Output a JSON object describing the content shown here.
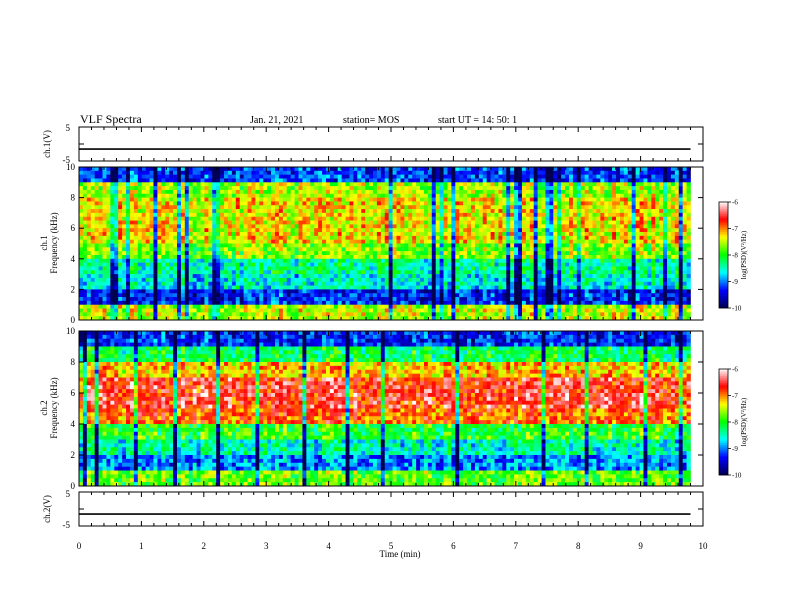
{
  "header": {
    "title": "VLF Spectra",
    "date": "Jan. 21, 2021",
    "station": "station= MOS",
    "start": "start UT =  14: 50: 1"
  },
  "chart_data": [
    {
      "type": "line",
      "panel": "waveform-ch1",
      "ylabel": "ch.1(V)",
      "ylim": [
        -5,
        5
      ],
      "ytick_labels": [
        "5",
        "-5"
      ],
      "x": [
        0,
        9.8
      ],
      "values": [
        -1.5,
        -1.5
      ]
    },
    {
      "type": "heatmap",
      "panel": "spectrogram-ch1",
      "ylabel": "ch.1\nFrequency (kHz)",
      "ylabel_line1": "ch.1",
      "ylabel_line2": "Frequency (kHz)",
      "ylim": [
        0,
        10
      ],
      "ytick_labels": [
        "0",
        "2",
        "4",
        "6",
        "8",
        "10"
      ],
      "xlim": [
        0,
        9.8
      ],
      "colorbar": {
        "label": "log(PSD)(V²/Hz)",
        "range": [
          -10,
          -6
        ],
        "tick_labels": [
          "-6",
          "-7",
          "-8",
          "-9",
          "-10"
        ]
      },
      "profile": [
        {
          "freq_khz": 0.5,
          "log_psd": -7.5
        },
        {
          "freq_khz": 1.5,
          "log_psd": -9.3
        },
        {
          "freq_khz": 2.5,
          "log_psd": -8.6
        },
        {
          "freq_khz": 3.5,
          "log_psd": -8.4
        },
        {
          "freq_khz": 4.5,
          "log_psd": -7.7
        },
        {
          "freq_khz": 5.5,
          "log_psd": -7.3
        },
        {
          "freq_khz": 6.5,
          "log_psd": -7.3
        },
        {
          "freq_khz": 7.5,
          "log_psd": -7.3
        },
        {
          "freq_khz": 8.5,
          "log_psd": -7.6
        },
        {
          "freq_khz": 9.5,
          "log_psd": -9.2
        }
      ]
    },
    {
      "type": "heatmap",
      "panel": "spectrogram-ch2",
      "ylabel_line1": "ch.2",
      "ylabel_line2": "Frequency (kHz)",
      "ylim": [
        0,
        10
      ],
      "ytick_labels": [
        "0",
        "2",
        "4",
        "6",
        "8",
        "10"
      ],
      "xlim": [
        0,
        9.8
      ],
      "colorbar": {
        "label": "log(PSD)(V²/Hz)",
        "range": [
          -10,
          -6
        ],
        "tick_labels": [
          "-6",
          "-7",
          "-8",
          "-9",
          "-10"
        ]
      },
      "profile": [
        {
          "freq_khz": 0.5,
          "log_psd": -7.8
        },
        {
          "freq_khz": 1.5,
          "log_psd": -9.0
        },
        {
          "freq_khz": 2.5,
          "log_psd": -8.5
        },
        {
          "freq_khz": 3.5,
          "log_psd": -8.0
        },
        {
          "freq_khz": 4.5,
          "log_psd": -6.9
        },
        {
          "freq_khz": 5.5,
          "log_psd": -6.6
        },
        {
          "freq_khz": 6.5,
          "log_psd": -6.6
        },
        {
          "freq_khz": 7.5,
          "log_psd": -7.2
        },
        {
          "freq_khz": 8.5,
          "log_psd": -8.2
        },
        {
          "freq_khz": 9.5,
          "log_psd": -9.3
        }
      ]
    },
    {
      "type": "line",
      "panel": "waveform-ch2",
      "ylabel": "ch.2(V)",
      "ylim": [
        -5,
        5
      ],
      "ytick_labels": [
        "5",
        "-5"
      ],
      "x": [
        0,
        9.8
      ],
      "values": [
        -1.5,
        -1.5
      ]
    }
  ],
  "x_axis": {
    "label": "Time (min)",
    "range": [
      0,
      10
    ],
    "tick_labels": [
      "0",
      "1",
      "2",
      "3",
      "4",
      "5",
      "6",
      "7",
      "8",
      "9",
      "10"
    ]
  },
  "colors": {
    "cmap": [
      "#000050",
      "#0000ff",
      "#00ffff",
      "#00ff00",
      "#ffff00",
      "#ff0000",
      "#ffffff"
    ],
    "axis": "#000000"
  }
}
